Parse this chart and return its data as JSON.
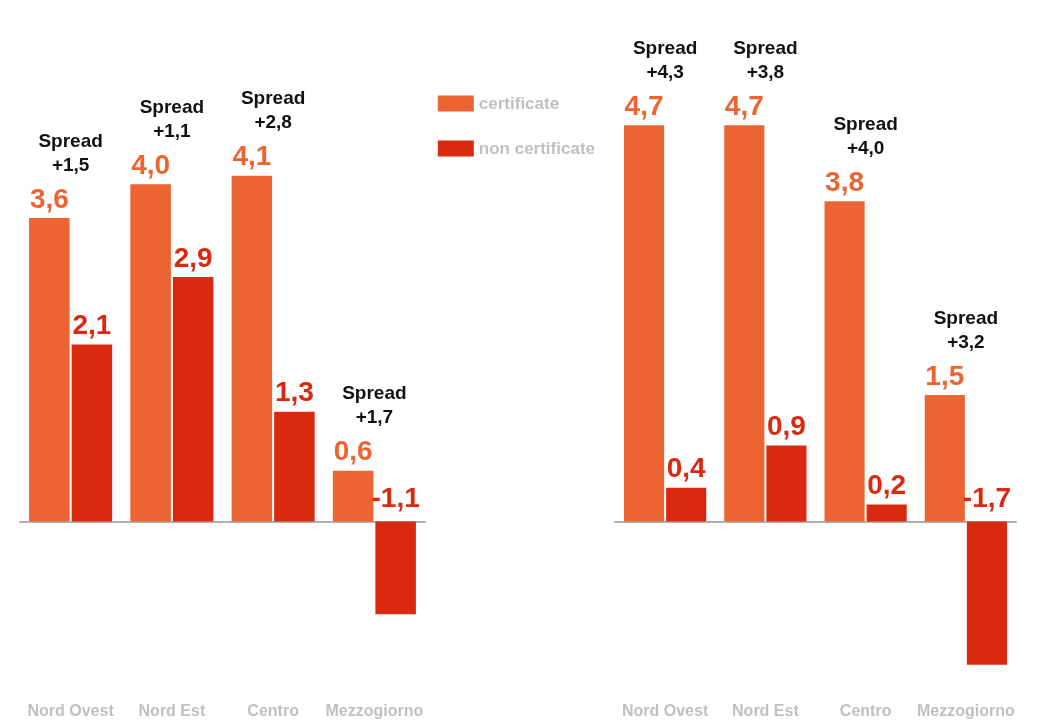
{
  "chart_data": [
    {
      "type": "bar",
      "categories": [
        "Nord Ovest",
        "Nord Est",
        "Centro",
        "Mezzogiorno"
      ],
      "series": [
        {
          "name": "certificate",
          "color": "#ec6432",
          "values": [
            3.6,
            4.0,
            4.1,
            0.6
          ],
          "value_labels": [
            "3,6",
            "4,0",
            "4,1",
            "0,6"
          ]
        },
        {
          "name": "non certificate",
          "color": "#d9290f",
          "values": [
            2.1,
            2.9,
            1.3,
            -1.1
          ],
          "value_labels": [
            "2,1",
            "2,9",
            "1,3",
            "-1,1"
          ]
        }
      ],
      "annotations": [
        {
          "text": "Spread\n+1,5",
          "x": "Nord Ovest",
          "y": 3.6
        },
        {
          "text": "Spread\n+1,1",
          "x": "Nord Est",
          "y": 4.0
        },
        {
          "text": "Spread\n+2,8",
          "x": "Centro",
          "y": 4.1
        },
        {
          "text": "Spread\n+1,7",
          "x": "Mezzogiorno",
          "y": 0.6
        }
      ],
      "tick_labels": "x",
      "legend": "top right"
    },
    {
      "type": "bar",
      "categories": [
        "Nord Ovest",
        "Nord Est",
        "Centro",
        "Mezzogiorno"
      ],
      "series": [
        {
          "color": "#ec6432",
          "values": [
            4.7,
            4.7,
            3.8,
            1.5
          ],
          "value_labels": [
            "4,7",
            "4,7",
            "3,8",
            "1,5"
          ]
        },
        {
          "color": "#d9290f",
          "values": [
            0.4,
            0.9,
            0.2,
            -1.7
          ],
          "value_labels": [
            "0,4",
            "0,9",
            "0,2",
            "-1,7"
          ]
        }
      ],
      "annotations": [
        {
          "text": "Spread\n+4,3",
          "x": "Nord Ovest",
          "y": 4.7
        },
        {
          "text": "Spread\n+3,8",
          "x": "Nord Est",
          "y": 4.7
        },
        {
          "text": "Spread\n+4,0",
          "x": "Centro",
          "y": 3.8
        },
        {
          "text": "Spread\n+3,2",
          "x": "Mezzogiorno",
          "y": 1.5
        }
      ],
      "tick_labels": "x",
      "legend": false
    }
  ]
}
